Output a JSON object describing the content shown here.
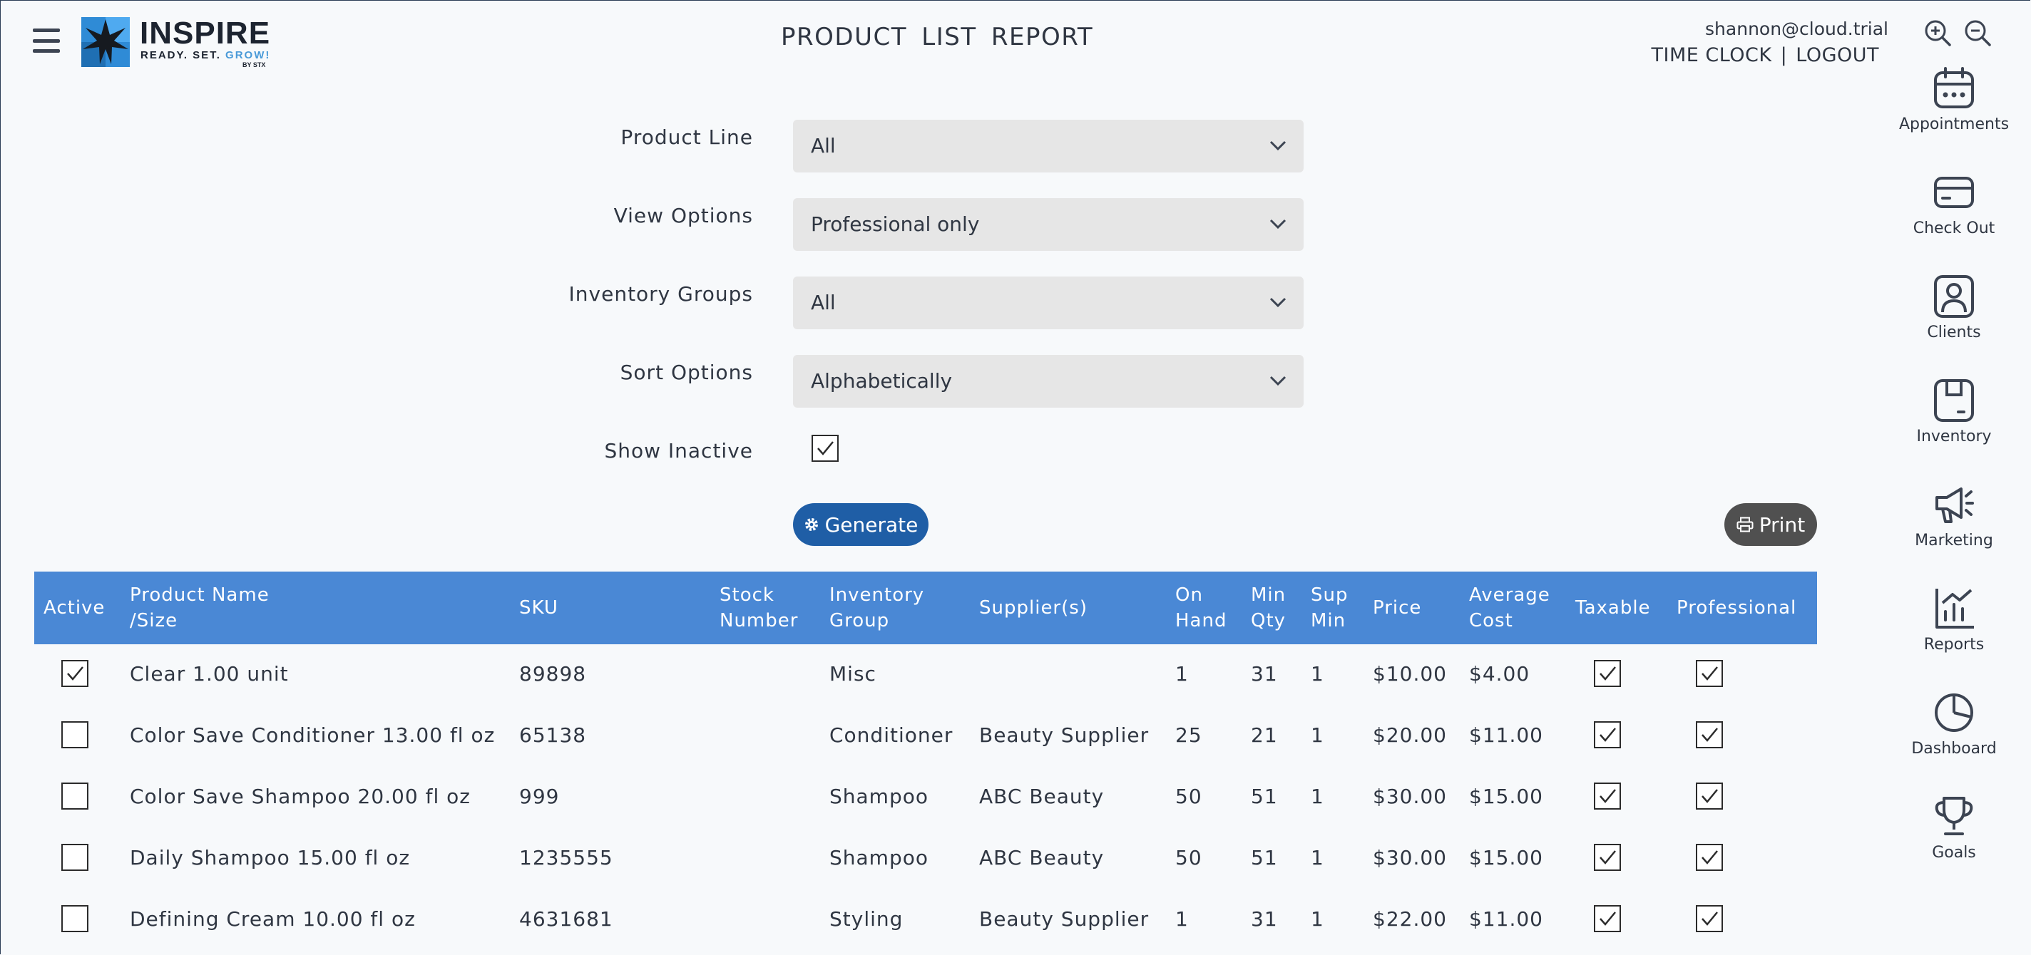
{
  "header": {
    "menu_icon": "hamburger-menu-icon",
    "logo": {
      "word": "INSPIRE",
      "tag_a": "READY. SET. ",
      "tag_b": "GROW!",
      "by": "BY STX"
    },
    "page_title": "PRODUCT LIST REPORT",
    "user_email": "shannon@cloud.trial",
    "time_clock": "TIME CLOCK",
    "separator": "|",
    "logout": "LOGOUT",
    "zoom_in_icon": "zoom-in-icon",
    "zoom_out_icon": "zoom-out-icon"
  },
  "rightnav": [
    {
      "label": "Appointments",
      "icon": "calendar-icon"
    },
    {
      "label": "Check Out",
      "icon": "credit-card-icon"
    },
    {
      "label": "Clients",
      "icon": "person-icon"
    },
    {
      "label": "Inventory",
      "icon": "box-icon"
    },
    {
      "label": "Marketing",
      "icon": "megaphone-icon"
    },
    {
      "label": "Reports",
      "icon": "bar-chart-icon"
    },
    {
      "label": "Dashboard",
      "icon": "pie-chart-icon"
    },
    {
      "label": "Goals",
      "icon": "trophy-icon"
    }
  ],
  "form": {
    "product_line": {
      "label": "Product Line",
      "value": "All"
    },
    "view_options": {
      "label": "View Options",
      "value": "Professional only"
    },
    "inventory_groups": {
      "label": "Inventory Groups",
      "value": "All"
    },
    "sort_options": {
      "label": "Sort Options",
      "value": "Alphabetically"
    },
    "show_inactive": {
      "label": "Show Inactive",
      "checked": true
    },
    "generate_label": "Generate",
    "print_label": "Print"
  },
  "table": {
    "columns": {
      "active": "Active",
      "name_1": "Product Name",
      "name_2": "/Size",
      "sku": "SKU",
      "stock_1": "Stock",
      "stock_2": "Number",
      "group_1": "Inventory",
      "group_2": "Group",
      "suppliers": "Supplier(s)",
      "onhand_1": "On",
      "onhand_2": "Hand",
      "minqty_1": "Min",
      "minqty_2": "Qty",
      "supmin_1": "Sup",
      "supmin_2": "Min",
      "price": "Price",
      "avg_1": "Average",
      "avg_2": "Cost",
      "taxable": "Taxable",
      "professional": "Professional"
    },
    "rows": [
      {
        "active": true,
        "name": "Clear 1.00 unit",
        "sku": "89898",
        "stock": "",
        "group": "Misc",
        "supplier": "",
        "on_hand": "1",
        "min_qty": "31",
        "sup_min": "1",
        "price": "$10.00",
        "avg_cost": "$4.00",
        "taxable": true,
        "professional": true
      },
      {
        "active": false,
        "name": "Color Save Conditioner 13.00 fl oz",
        "sku": "65138",
        "stock": "",
        "group": "Conditioner",
        "supplier": "Beauty Supplier",
        "on_hand": "25",
        "min_qty": "21",
        "sup_min": "1",
        "price": "$20.00",
        "avg_cost": "$11.00",
        "taxable": true,
        "professional": true
      },
      {
        "active": false,
        "name": "Color Save Shampoo 20.00 fl oz",
        "sku": "999",
        "stock": "",
        "group": "Shampoo",
        "supplier": "ABC Beauty",
        "on_hand": "50",
        "min_qty": "51",
        "sup_min": "1",
        "price": "$30.00",
        "avg_cost": "$15.00",
        "taxable": true,
        "professional": true
      },
      {
        "active": false,
        "name": "Daily Shampoo 15.00 fl oz",
        "sku": "1235555",
        "stock": "",
        "group": "Shampoo",
        "supplier": "ABC Beauty",
        "on_hand": "50",
        "min_qty": "51",
        "sup_min": "1",
        "price": "$30.00",
        "avg_cost": "$15.00",
        "taxable": true,
        "professional": true
      },
      {
        "active": false,
        "name": "Defining Cream 10.00 fl oz",
        "sku": "4631681",
        "stock": "",
        "group": "Styling",
        "supplier": "Beauty Supplier",
        "on_hand": "1",
        "min_qty": "31",
        "sup_min": "1",
        "price": "$22.00",
        "avg_cost": "$11.00",
        "taxable": true,
        "professional": true
      }
    ]
  },
  "colors": {
    "header_blue": "#4a88d5",
    "generate_blue": "#1f5ea6",
    "print_gray": "#505050",
    "select_bg": "#e6e6e6",
    "logo_blue": "#4a9ad8"
  }
}
